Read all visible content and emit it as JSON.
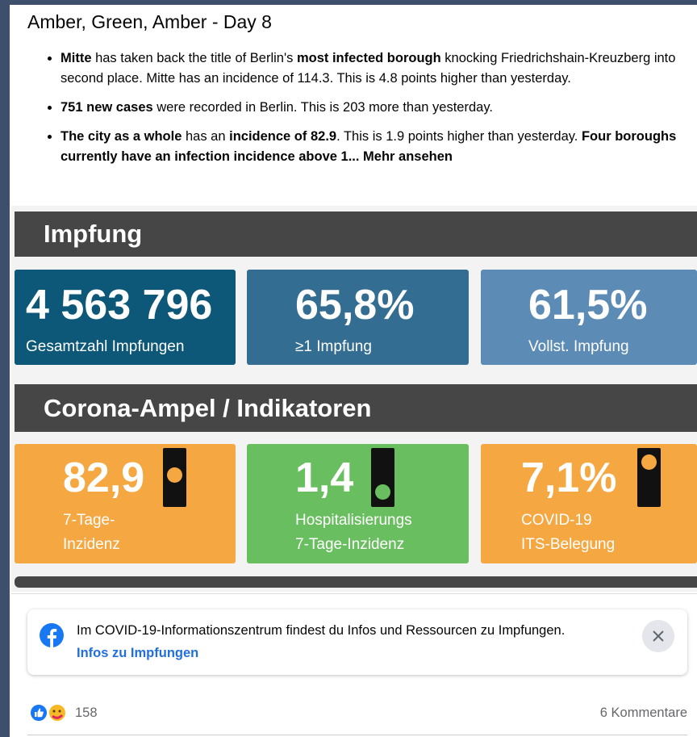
{
  "post": {
    "title": "Amber, Green, Amber - Day 8",
    "bullets": [
      [
        {
          "text": "Mitte",
          "bold": true
        },
        {
          "text": " has taken back the title of Berlin's ",
          "bold": false
        },
        {
          "text": "most infected borough",
          "bold": true
        },
        {
          "text": " knocking Friedrichshain-Kreuzberg into second place. Mitte has an incidence of 114.3. This is 4.8 points higher than yesterday.",
          "bold": false
        }
      ],
      [
        {
          "text": "751 new cases",
          "bold": true
        },
        {
          "text": " were recorded in Berlin. This is 203 more than yesterday.",
          "bold": false
        }
      ],
      [
        {
          "text": "The city as a whole",
          "bold": true
        },
        {
          "text": " has an ",
          "bold": false
        },
        {
          "text": "incidence of 82.9",
          "bold": true
        },
        {
          "text": ". This is 1.9 points higher than yesterday. ",
          "bold": false
        },
        {
          "text": "Four boroughs currently have an infection incidence above 1...",
          "bold": true
        }
      ]
    ],
    "more_link": "Mehr ansehen"
  },
  "image": {
    "sections": [
      {
        "heading": "Impfung",
        "tiles": [
          {
            "value": "4 563 796",
            "label": [
              "Gesamtzahl Impfungen"
            ],
            "color": "#0d5878"
          },
          {
            "value": "65,8%",
            "label": [
              "≥1 Impfung"
            ],
            "color": "#346d92"
          },
          {
            "value": "61,5%",
            "label": [
              "Vollst. Impfung"
            ],
            "color": "#5c8cb5"
          }
        ]
      },
      {
        "heading": "Corona-Ampel / Indikatoren",
        "tiles": [
          {
            "value": "82,9",
            "label": [
              "7-Tage-",
              "Inzidenz"
            ],
            "color": "#f5a742",
            "light": {
              "position": "middle",
              "color": "#f5a742"
            }
          },
          {
            "value": "1,4",
            "label": [
              "Hospitalisierungs",
              "7-Tage-Inzidenz"
            ],
            "color": "#69bf5f",
            "light": {
              "position": "bottom",
              "color": "#69bf5f"
            }
          },
          {
            "value": "7,1%",
            "label": [
              "COVID-19",
              "ITS-Belegung"
            ],
            "color": "#f5a742",
            "light": {
              "position": "top",
              "color": "#f5a742"
            }
          }
        ]
      }
    ]
  },
  "info_box": {
    "text": "Im COVID-19-Informationszentrum findest du Infos und Ressourcen zu Impfungen.",
    "link": "Infos zu Impfungen"
  },
  "footer": {
    "reactions": "158",
    "comments": "6 Kommentare"
  }
}
